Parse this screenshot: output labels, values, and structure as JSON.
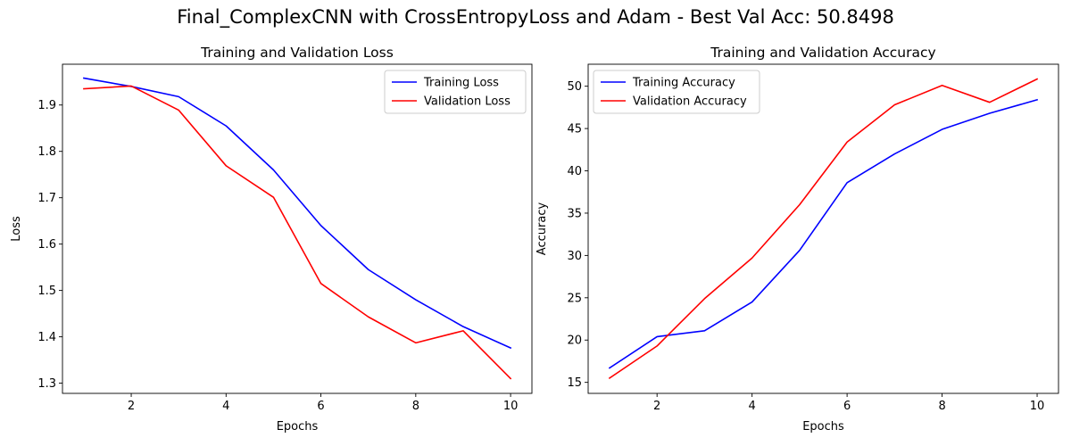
{
  "figure": {
    "suptitle": "Final_ComplexCNN with CrossEntropyLoss and Adam - Best Val Acc: 50.8498"
  },
  "chart_data": [
    {
      "type": "line",
      "title": "Training and Validation Loss",
      "xlabel": "Epochs",
      "ylabel": "Loss",
      "x": [
        1,
        2,
        3,
        4,
        5,
        6,
        7,
        8,
        9,
        10
      ],
      "xlim": [
        0.55,
        10.45
      ],
      "ylim": [
        1.278,
        1.988
      ],
      "xticks": [
        2,
        4,
        6,
        8,
        10
      ],
      "yticks": [
        1.3,
        1.4,
        1.5,
        1.6,
        1.7,
        1.8,
        1.9
      ],
      "xtick_labels": [
        "2",
        "4",
        "6",
        "8",
        "10"
      ],
      "ytick_labels": [
        "1.3",
        "1.4",
        "1.5",
        "1.6",
        "1.7",
        "1.8",
        "1.9"
      ],
      "grid": false,
      "legend_position": "top-right",
      "series": [
        {
          "name": "Training Loss",
          "color": "#0000ff",
          "values": [
            1.958,
            1.94,
            1.918,
            1.855,
            1.76,
            1.64,
            1.545,
            1.48,
            1.422,
            1.376
          ]
        },
        {
          "name": "Validation Loss",
          "color": "#ff0000",
          "values": [
            1.935,
            1.941,
            1.889,
            1.769,
            1.701,
            1.515,
            1.443,
            1.387,
            1.413,
            1.31
          ]
        }
      ]
    },
    {
      "type": "line",
      "title": "Training and Validation Accuracy",
      "xlabel": "Epochs",
      "ylabel": "Accuracy",
      "x": [
        1,
        2,
        3,
        4,
        5,
        6,
        7,
        8,
        9,
        10
      ],
      "xlim": [
        0.55,
        10.45
      ],
      "ylim": [
        13.7,
        52.6
      ],
      "xticks": [
        2,
        4,
        6,
        8,
        10
      ],
      "yticks": [
        15,
        20,
        25,
        30,
        35,
        40,
        45,
        50
      ],
      "xtick_labels": [
        "2",
        "4",
        "6",
        "8",
        "10"
      ],
      "ytick_labels": [
        "15",
        "20",
        "25",
        "30",
        "35",
        "40",
        "45",
        "50"
      ],
      "grid": false,
      "legend_position": "top-left",
      "series": [
        {
          "name": "Training Accuracy",
          "color": "#0000ff",
          "values": [
            16.7,
            20.4,
            21.1,
            24.5,
            30.6,
            38.6,
            42.0,
            44.9,
            46.8,
            48.4
          ]
        },
        {
          "name": "Validation Accuracy",
          "color": "#ff0000",
          "values": [
            15.5,
            19.3,
            24.9,
            29.7,
            36.0,
            43.4,
            47.8,
            50.1,
            48.1,
            50.85
          ]
        }
      ]
    }
  ]
}
